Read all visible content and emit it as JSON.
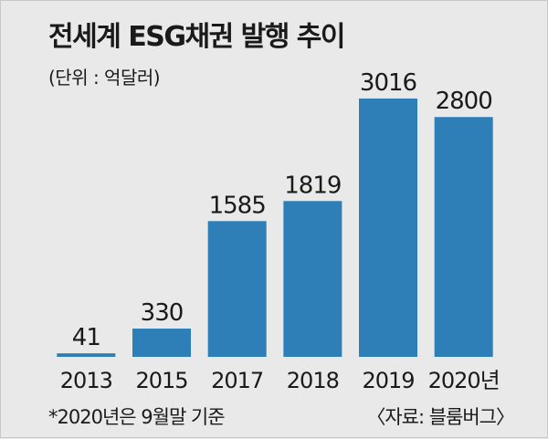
{
  "chart_data": {
    "type": "bar",
    "title": "전세계 ESG채권 발행 추이",
    "unit_label": "(단위 : 억달러)",
    "categories": [
      "2013",
      "2015",
      "2017",
      "2018",
      "2019",
      "2020년"
    ],
    "values": [
      41,
      330,
      1585,
      1819,
      3016,
      2800
    ],
    "ylim": [
      0,
      3250
    ],
    "grid": false,
    "legend": "none",
    "bar_color": "#2e7fb8",
    "footnote": "*2020년은 9월말 기준",
    "source": "〈자료: 블룸버그〉"
  }
}
